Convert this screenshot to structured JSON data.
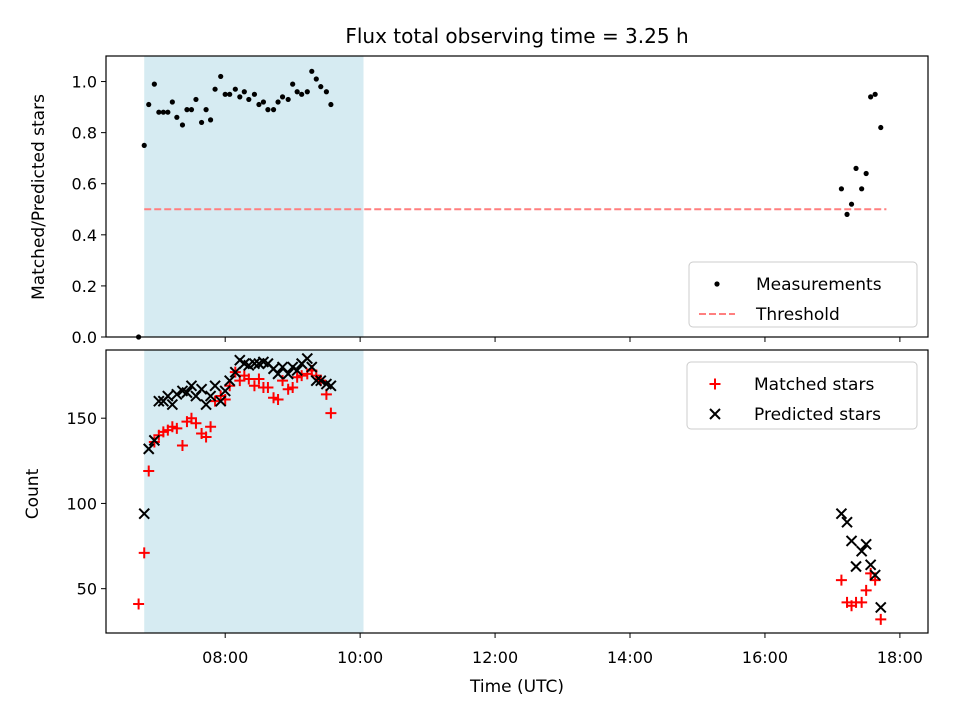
{
  "chart_data": [
    {
      "type": "scatter",
      "title": "Flux total observing time = 3.25 h",
      "xlabel": "",
      "ylabel": "Matched/Predicted stars",
      "ylim": [
        0,
        1.1
      ],
      "yticks": [
        "0.0",
        "0.2",
        "0.4",
        "0.6",
        "0.8",
        "1.0"
      ],
      "shaded_region": {
        "x": [
          "06:48",
          "10:03"
        ],
        "color": "#add8e6"
      },
      "legend": {
        "placement": "lower-right",
        "entries": [
          "Measurements",
          "Threshold"
        ]
      },
      "series": [
        {
          "name": "Measurements",
          "marker": "dot",
          "color": "#000000",
          "points": [
            [
              "06:43",
              0.0
            ],
            [
              "06:48",
              0.75
            ],
            [
              "06:52",
              0.91
            ],
            [
              "06:57",
              0.99
            ],
            [
              "07:01",
              0.88
            ],
            [
              "07:05",
              0.88
            ],
            [
              "07:09",
              0.88
            ],
            [
              "07:13",
              0.92
            ],
            [
              "07:17",
              0.86
            ],
            [
              "07:22",
              0.83
            ],
            [
              "07:26",
              0.89
            ],
            [
              "07:30",
              0.89
            ],
            [
              "07:34",
              0.93
            ],
            [
              "07:39",
              0.84
            ],
            [
              "07:43",
              0.89
            ],
            [
              "07:47",
              0.85
            ],
            [
              "07:51",
              0.97
            ],
            [
              "07:56",
              1.02
            ],
            [
              "08:00",
              0.95
            ],
            [
              "08:04",
              0.95
            ],
            [
              "08:09",
              0.97
            ],
            [
              "08:13",
              0.94
            ],
            [
              "08:17",
              0.96
            ],
            [
              "08:21",
              0.93
            ],
            [
              "08:26",
              0.95
            ],
            [
              "08:30",
              0.91
            ],
            [
              "08:34",
              0.92
            ],
            [
              "08:38",
              0.89
            ],
            [
              "08:43",
              0.89
            ],
            [
              "08:47",
              0.92
            ],
            [
              "08:51",
              0.94
            ],
            [
              "08:56",
              0.93
            ],
            [
              "09:00",
              0.99
            ],
            [
              "09:04",
              0.96
            ],
            [
              "09:08",
              0.95
            ],
            [
              "09:13",
              0.96
            ],
            [
              "09:17",
              1.04
            ],
            [
              "09:21",
              1.01
            ],
            [
              "09:25",
              0.98
            ],
            [
              "09:30",
              0.96
            ],
            [
              "09:34",
              0.91
            ],
            [
              "17:08",
              0.58
            ],
            [
              "17:13",
              0.48
            ],
            [
              "17:17",
              0.52
            ],
            [
              "17:21",
              0.66
            ],
            [
              "17:26",
              0.58
            ],
            [
              "17:30",
              0.64
            ],
            [
              "17:34",
              0.94
            ],
            [
              "17:38",
              0.95
            ],
            [
              "17:43",
              0.82
            ]
          ]
        },
        {
          "name": "Threshold",
          "style": "dashed",
          "color": "#ff7f7f",
          "points": [
            [
              "06:48",
              0.5
            ],
            [
              "17:48",
              0.5
            ]
          ]
        }
      ]
    },
    {
      "type": "scatter",
      "title": "",
      "xlabel": "Time (UTC)",
      "ylabel": "Count",
      "ylim": [
        24,
        190
      ],
      "yticks": [
        "50",
        "100",
        "150"
      ],
      "xlim": [
        "06:14",
        "18:25"
      ],
      "xticks": [
        "08:00",
        "10:00",
        "12:00",
        "14:00",
        "16:00",
        "18:00"
      ],
      "shaded_region": {
        "x": [
          "06:48",
          "10:03"
        ],
        "color": "#add8e6"
      },
      "legend": {
        "placement": "top-right",
        "entries": [
          "Matched stars",
          "Predicted stars"
        ]
      },
      "series": [
        {
          "name": "Matched stars",
          "marker": "plus",
          "color": "#ff0000",
          "points": [
            [
              "06:43",
              41
            ],
            [
              "06:48",
              71
            ],
            [
              "06:52",
              119
            ],
            [
              "06:57",
              136
            ],
            [
              "07:01",
              140
            ],
            [
              "07:05",
              142
            ],
            [
              "07:09",
              143
            ],
            [
              "07:13",
              145
            ],
            [
              "07:17",
              144
            ],
            [
              "07:22",
              134
            ],
            [
              "07:26",
              148
            ],
            [
              "07:30",
              150
            ],
            [
              "07:34",
              147
            ],
            [
              "07:39",
              141
            ],
            [
              "07:43",
              139
            ],
            [
              "07:47",
              145
            ],
            [
              "07:51",
              160
            ],
            [
              "07:56",
              163
            ],
            [
              "08:00",
              161
            ],
            [
              "08:04",
              169
            ],
            [
              "08:09",
              177
            ],
            [
              "08:13",
              172
            ],
            [
              "08:17",
              175
            ],
            [
              "08:21",
              173
            ],
            [
              "08:26",
              169
            ],
            [
              "08:30",
              173
            ],
            [
              "08:34",
              168
            ],
            [
              "08:38",
              168
            ],
            [
              "08:43",
              162
            ],
            [
              "08:47",
              161
            ],
            [
              "08:51",
              172
            ],
            [
              "08:56",
              167
            ],
            [
              "09:00",
              168
            ],
            [
              "09:04",
              174
            ],
            [
              "09:08",
              175
            ],
            [
              "09:13",
              176
            ],
            [
              "09:17",
              178
            ],
            [
              "09:21",
              175
            ],
            [
              "09:25",
              172
            ],
            [
              "09:30",
              164
            ],
            [
              "09:34",
              153
            ],
            [
              "17:08",
              55
            ],
            [
              "17:13",
              42
            ],
            [
              "17:17",
              40
            ],
            [
              "17:21",
              42
            ],
            [
              "17:26",
              42
            ],
            [
              "17:30",
              49
            ],
            [
              "17:34",
              59
            ],
            [
              "17:38",
              55
            ],
            [
              "17:43",
              32
            ]
          ]
        },
        {
          "name": "Predicted stars",
          "marker": "x",
          "color": "#000000",
          "points": [
            [
              "06:48",
              94
            ],
            [
              "06:52",
              132
            ],
            [
              "06:57",
              137
            ],
            [
              "07:01",
              160
            ],
            [
              "07:05",
              160
            ],
            [
              "07:09",
              163
            ],
            [
              "07:13",
              158
            ],
            [
              "07:17",
              164
            ],
            [
              "07:22",
              166
            ],
            [
              "07:26",
              165
            ],
            [
              "07:30",
              169
            ],
            [
              "07:34",
              163
            ],
            [
              "07:39",
              167
            ],
            [
              "07:43",
              158
            ],
            [
              "07:47",
              163
            ],
            [
              "07:51",
              169
            ],
            [
              "07:56",
              160
            ],
            [
              "08:00",
              166
            ],
            [
              "08:04",
              172
            ],
            [
              "08:09",
              177
            ],
            [
              "08:13",
              184
            ],
            [
              "08:17",
              182
            ],
            [
              "08:21",
              181
            ],
            [
              "08:26",
              182
            ],
            [
              "08:30",
              182
            ],
            [
              "08:34",
              183
            ],
            [
              "08:38",
              182
            ],
            [
              "08:43",
              179
            ],
            [
              "08:47",
              176
            ],
            [
              "08:51",
              180
            ],
            [
              "08:56",
              176
            ],
            [
              "09:00",
              180
            ],
            [
              "09:04",
              178
            ],
            [
              "09:08",
              182
            ],
            [
              "09:13",
              185
            ],
            [
              "09:17",
              180
            ],
            [
              "09:21",
              172
            ],
            [
              "09:25",
              172
            ],
            [
              "09:30",
              170
            ],
            [
              "09:34",
              169
            ],
            [
              "17:08",
              94
            ],
            [
              "17:13",
              89
            ],
            [
              "17:17",
              78
            ],
            [
              "17:21",
              63
            ],
            [
              "17:26",
              72
            ],
            [
              "17:30",
              76
            ],
            [
              "17:34",
              64
            ],
            [
              "17:38",
              58
            ],
            [
              "17:43",
              39
            ]
          ]
        }
      ]
    }
  ]
}
